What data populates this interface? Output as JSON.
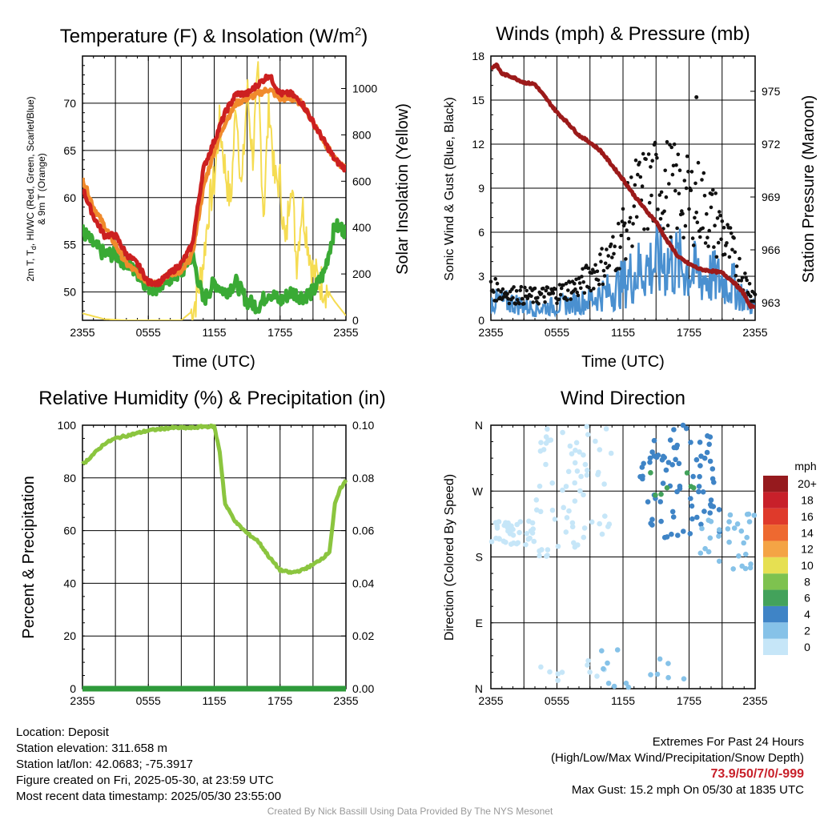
{
  "chart_data": [
    {
      "type": "line",
      "title_text": "Temperature (F) & Insolation (W/m",
      "title_sup": "2",
      "title_close": ")",
      "xlabel": "Time (UTC)",
      "ylabel_left": [
        "2m T, T",
        "d",
        ", HI/WC (Red, Green, Scarlet/Blue)",
        "& 9m T (Orange)"
      ],
      "ylabel_right": "Solar Insolation (Yellow)",
      "x_ticks": [
        "2355",
        "0555",
        "1155",
        "1755",
        "2355"
      ],
      "x_range_hours": [
        0,
        24
      ],
      "y_left_ticks": [
        50,
        55,
        60,
        65,
        70
      ],
      "ylim_left": [
        47,
        75
      ],
      "y_right_ticks": [
        0,
        200,
        400,
        600,
        800,
        1000
      ],
      "ylim_right": [
        0,
        1140
      ],
      "colors": {
        "temp": "#cc2020",
        "dew": "#3aaa35",
        "hiwc": "#dd3a20",
        "t9m": "#f08a2c",
        "solar": "#f5dc52"
      },
      "series": [
        {
          "key": "temp",
          "x": [
            0,
            1,
            2,
            3,
            4,
            5,
            6,
            7,
            8,
            9,
            10,
            11,
            12,
            13,
            14,
            15,
            16,
            17,
            18,
            19,
            20,
            21,
            22,
            23,
            24
          ],
          "values": [
            61,
            58,
            56,
            56,
            54,
            53,
            51,
            51,
            52,
            53,
            55,
            63,
            66,
            69,
            71,
            71,
            72,
            73,
            71,
            71,
            70,
            68,
            66,
            64,
            63
          ]
        },
        {
          "key": "t9m",
          "x": [
            0,
            1,
            2,
            3,
            4,
            5,
            6,
            7,
            8,
            9,
            10,
            11,
            12,
            13,
            14,
            15,
            16,
            17,
            18,
            19,
            20,
            21,
            22,
            23,
            24
          ],
          "values": [
            62,
            59,
            57,
            55,
            53,
            52,
            51,
            51,
            52,
            52,
            54,
            61,
            65,
            68,
            70,
            70.5,
            71,
            71.5,
            70.5,
            70.5,
            70,
            68,
            66,
            64,
            63
          ]
        },
        {
          "key": "dew",
          "x": [
            0,
            1,
            2,
            3,
            4,
            5,
            6,
            7,
            8,
            9,
            10,
            11,
            12,
            13,
            14,
            15,
            16,
            17,
            18,
            19,
            20,
            21,
            22,
            23,
            24
          ],
          "values": [
            56.5,
            55,
            54,
            54,
            53,
            52,
            50.5,
            50.5,
            51.5,
            52,
            54,
            49,
            51,
            50,
            51,
            49,
            48.5,
            50,
            49,
            50,
            49.5,
            50,
            52,
            57,
            56.5
          ]
        },
        {
          "key": "solar",
          "x": [
            0,
            2,
            4,
            6,
            8,
            9,
            10,
            10.5,
            11,
            11.5,
            12,
            12.5,
            13,
            13.5,
            14,
            14.5,
            15,
            15.5,
            16,
            16.5,
            17,
            17.5,
            18,
            18.5,
            19,
            19.5,
            20,
            21,
            22,
            23,
            24
          ],
          "values": [
            30,
            5,
            0,
            0,
            0,
            0,
            40,
            120,
            250,
            480,
            600,
            850,
            650,
            500,
            950,
            550,
            1000,
            700,
            1050,
            450,
            950,
            600,
            600,
            300,
            650,
            250,
            500,
            200,
            150,
            80,
            20
          ]
        }
      ]
    },
    {
      "type": "scatter",
      "title": "Winds (mph) & Pressure (mb)",
      "xlabel": "Time (UTC)",
      "ylabel_left": "Sonic Wind & Gust (Blue, Black)",
      "ylabel_right": "Station Pressure (Maroon)",
      "x_ticks": [
        "2355",
        "0555",
        "1155",
        "1755",
        "2355"
      ],
      "x_range_hours": [
        0,
        24
      ],
      "y_left_ticks": [
        0,
        3,
        6,
        9,
        12,
        15,
        18
      ],
      "ylim_left": [
        0,
        18
      ],
      "y_right_ticks": [
        963,
        966,
        969,
        972,
        975
      ],
      "ylim_right": [
        962.0,
        977.0
      ],
      "colors": {
        "wind": "#4a90d0",
        "gust": "#111111",
        "pressure": "#9c1a1a"
      },
      "pressure": {
        "x": [
          0,
          0.5,
          1,
          2,
          3,
          4,
          5,
          6,
          7,
          8,
          9,
          10,
          11,
          12,
          13,
          14,
          15,
          16,
          16.5,
          17,
          18,
          19,
          20,
          21,
          22,
          23,
          23.5,
          24
        ],
        "values": [
          976.3,
          976.5,
          976.0,
          975.8,
          975.5,
          975.4,
          974.6,
          973.8,
          973.2,
          972.5,
          972.1,
          971.6,
          970.8,
          970.0,
          969.1,
          968.3,
          967.6,
          966.5,
          966.1,
          965.6,
          965.2,
          964.9,
          964.8,
          964.7,
          964.2,
          963.5,
          962.8,
          962.8
        ]
      },
      "wind_mean": {
        "x": [
          0,
          2,
          4,
          6,
          8,
          9,
          10,
          11,
          12,
          13,
          14,
          15,
          16,
          17,
          18,
          19,
          20,
          21,
          22,
          23,
          24
        ],
        "values": [
          1.3,
          1.2,
          0.8,
          1.0,
          1.2,
          1.4,
          1.8,
          2.0,
          2.5,
          3.2,
          3.6,
          3.8,
          4.0,
          3.8,
          3.4,
          3.0,
          2.9,
          2.7,
          2.4,
          1.5,
          0.8
        ]
      },
      "gust_mean": {
        "x": [
          0,
          2,
          4,
          6,
          8,
          9,
          10,
          11,
          12,
          13,
          14,
          15,
          16,
          17,
          18,
          19,
          20,
          21,
          22,
          23,
          24
        ],
        "values": [
          2.0,
          1.6,
          1.5,
          1.7,
          2.2,
          2.8,
          3.4,
          4.0,
          5.5,
          7.5,
          8.0,
          8.5,
          8.5,
          8.0,
          7.5,
          7.5,
          6.5,
          5.5,
          4.0,
          2.5,
          1.5
        ]
      },
      "max_gust_point": {
        "x": 18.67,
        "y": 15.2
      }
    },
    {
      "type": "line",
      "title": "Relative Humidity (%) & Precipitation (in)",
      "ylabel_left": "Percent & Precipitation",
      "x_ticks": [
        "2355",
        "0555",
        "1155",
        "1755",
        "2355"
      ],
      "x_range_hours": [
        0,
        24
      ],
      "y_left_ticks": [
        0,
        20,
        40,
        60,
        80,
        100
      ],
      "ylim_left": [
        0,
        100
      ],
      "y_right_ticks": [
        "0.00",
        "0.02",
        "0.04",
        "0.06",
        "0.08",
        "0.10"
      ],
      "ylim_right": [
        0,
        0.1
      ],
      "colors": {
        "rh": "#8bc53f",
        "precip": "#2e9a3a"
      },
      "series": [
        {
          "key": "rh",
          "x": [
            0,
            0.5,
            1,
            2,
            3,
            4,
            5,
            6,
            7,
            8,
            9,
            10,
            11,
            12,
            12.5,
            13,
            14,
            15,
            16,
            17,
            18,
            19,
            20,
            21,
            22,
            22.5,
            23,
            23.5,
            24
          ],
          "values": [
            85,
            87,
            89,
            93,
            95,
            96,
            97,
            98,
            98.5,
            99,
            99,
            99,
            99.5,
            99.5,
            90,
            70,
            63,
            59,
            56,
            50,
            45,
            44,
            45,
            47,
            50,
            52,
            70,
            76,
            79
          ]
        },
        {
          "key": "precip",
          "x": [
            0,
            24
          ],
          "values": [
            0,
            0
          ]
        }
      ]
    },
    {
      "type": "scatter",
      "title": "Wind Direction",
      "ylabel_left": "Direction (Colored By Speed)",
      "x_ticks": [
        "2355",
        "0555",
        "1155",
        "1755",
        "2355"
      ],
      "x_range_hours": [
        0,
        24
      ],
      "y_ticks": [
        "N",
        "E",
        "S",
        "W",
        "N"
      ],
      "ylim_deg": [
        0,
        360
      ],
      "colorbar": {
        "title": "mph",
        "labels": [
          "0",
          "2",
          "4",
          "6",
          "8",
          "10",
          "12",
          "14",
          "16",
          "18",
          "20+"
        ],
        "colors": [
          "#c6e6f8",
          "#86c2e8",
          "#3f84c6",
          "#43a25b",
          "#7ec24f",
          "#e6e052",
          "#f4a445",
          "#ee6930",
          "#df3a2b",
          "#c8202a",
          "#961a1e"
        ]
      },
      "clusters": [
        {
          "x_range": [
            0,
            4
          ],
          "deg_range": [
            195,
            230
          ],
          "count": 40,
          "color_index": 0
        },
        {
          "x_range": [
            4,
            11
          ],
          "deg_range": [
            180,
            360
          ],
          "count": 70,
          "color_index": 0
        },
        {
          "x_range": [
            4,
            11
          ],
          "deg_range": [
            0,
            40
          ],
          "count": 10,
          "color_index": 0
        },
        {
          "x_range": [
            10,
            18
          ],
          "deg_range": [
            0,
            60
          ],
          "count": 14,
          "color_index": 1
        },
        {
          "x_range": [
            13.5,
            21
          ],
          "deg_range": [
            200,
            360
          ],
          "count": 80,
          "color_index": 2
        },
        {
          "x_range": [
            14,
            20
          ],
          "deg_range": [
            250,
            300
          ],
          "count": 7,
          "color_index": 3
        },
        {
          "x_range": [
            19,
            24
          ],
          "deg_range": [
            160,
            240
          ],
          "count": 30,
          "color_index": 1
        }
      ]
    }
  ],
  "footer_left": [
    "Location: Deposit",
    "Station elevation: 311.658 m",
    "Station lat/lon: 42.0683; -75.3917",
    "Figure created on Fri, 2025-05-30, at 23:59 UTC",
    "Most recent data timestamp: 2025/05/30 23:55:00"
  ],
  "footer_right": {
    "heading": "Extremes For Past 24 Hours",
    "subheading": "(High/Low/Max Wind/Precipitation/Snow Depth)",
    "values": "73.9/50/7/0/-999",
    "max_gust": "Max Gust: 15.2 mph On 05/30 at 1835 UTC"
  },
  "credit": "Created By Nick Bassill Using Data Provided By The NYS Mesonet"
}
